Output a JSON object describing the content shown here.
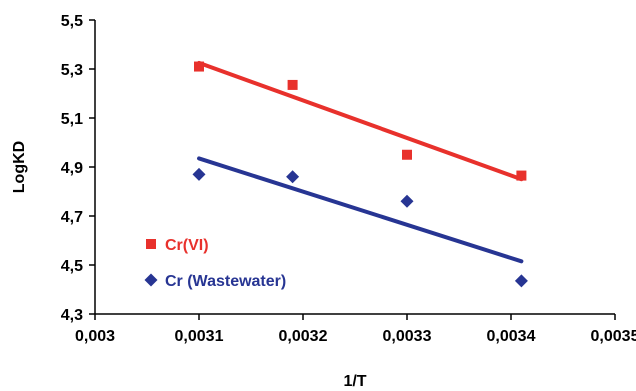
{
  "chart_data": {
    "type": "scatter",
    "xlabel": "1/T",
    "ylabel": "LogKD",
    "xlim": [
      0.003,
      0.0035
    ],
    "ylim": [
      4.3,
      5.5
    ],
    "x_ticks": [
      "0,003",
      "0,0031",
      "0,0032",
      "0,0033",
      "0,0034",
      "0,0035"
    ],
    "y_ticks": [
      "4,3",
      "4,5",
      "4,7",
      "4,9",
      "5,1",
      "5,3",
      "5,5"
    ],
    "grid": false,
    "legend_position": "bottom-left",
    "series": [
      {
        "name": "Cr(VI)",
        "marker": "square",
        "color": "#e8312c",
        "points": [
          {
            "x": 0.0031,
            "y": 5.31
          },
          {
            "x": 0.00319,
            "y": 5.235
          },
          {
            "x": 0.0033,
            "y": 4.95
          },
          {
            "x": 0.00341,
            "y": 4.865
          }
        ],
        "trendline": {
          "x": [
            0.0031,
            0.00341
          ],
          "y": [
            5.325,
            4.85
          ]
        }
      },
      {
        "name": "Cr (Wastewater)",
        "marker": "diamond",
        "color": "#273593",
        "points": [
          {
            "x": 0.0031,
            "y": 4.87
          },
          {
            "x": 0.00319,
            "y": 4.86
          },
          {
            "x": 0.0033,
            "y": 4.76
          },
          {
            "x": 0.00341,
            "y": 4.435
          }
        ],
        "trendline": {
          "x": [
            0.0031,
            0.00341
          ],
          "y": [
            4.935,
            4.515
          ]
        }
      }
    ]
  }
}
